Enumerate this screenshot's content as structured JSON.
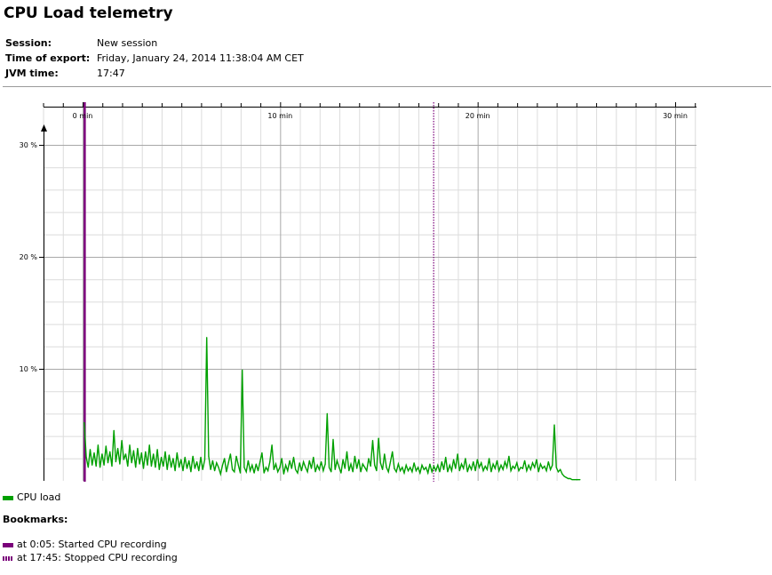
{
  "header": {
    "title": "CPU Load telemetry"
  },
  "meta": {
    "session_label": "Session:",
    "session_value": "New session",
    "export_label": "Time of export:",
    "export_value": "Friday, January 24, 2014 11:38:04 AM CET",
    "jvm_label": "JVM time:",
    "jvm_value": "17:47"
  },
  "legend": {
    "cpu_label": "CPU load"
  },
  "bookmarks": {
    "title": "Bookmarks:",
    "items": [
      {
        "text": "at 0:05: Started CPU recording",
        "time_min": 0.083,
        "style": "solid"
      },
      {
        "text": "at 17:45: Stopped CPU recording",
        "time_min": 17.75,
        "style": "dotted"
      }
    ]
  },
  "colors": {
    "cpu_line": "#00a000",
    "bookmark": "#7a007a",
    "grid_major": "#a8a8a8",
    "grid_minor": "#dcdcdc"
  },
  "chart_data": {
    "type": "line",
    "xunit": "min",
    "yunit": "%",
    "xlim": [
      -2,
      31
    ],
    "ylim": [
      0,
      30
    ],
    "x_major_ticks": [
      0,
      10,
      20,
      30
    ],
    "x_minor_step": 1,
    "y_major_ticks": [
      10,
      20,
      30
    ],
    "y_minor_step": 2,
    "x_tick_labels": [
      "0 min",
      "10 min",
      "20 min",
      "30 min"
    ],
    "y_tick_labels": [
      "10 %",
      "20 %",
      "30 %"
    ],
    "series": [
      {
        "name": "CPU load",
        "sample_interval_s": 6,
        "values": [
          5.2,
          2.1,
          1.2,
          2.8,
          1.4,
          2.5,
          1.3,
          3.2,
          1.2,
          2.4,
          1.4,
          3.1,
          1.6,
          2.6,
          1.3,
          4.5,
          1.7,
          2.9,
          1.5,
          3.6,
          1.9,
          2.4,
          1.3,
          3.2,
          1.6,
          2.7,
          1.2,
          2.9,
          1.5,
          2.5,
          1.1,
          2.6,
          1.4,
          3.2,
          1.3,
          2.4,
          1.2,
          2.8,
          1.0,
          2.1,
          1.3,
          2.6,
          1.0,
          2.3,
          1.2,
          2.0,
          0.9,
          2.5,
          1.2,
          1.9,
          0.9,
          2.1,
          1.1,
          1.8,
          0.8,
          2.2,
          1.1,
          1.7,
          0.9,
          2.1,
          1.0,
          1.9,
          12.8,
          2.2,
          1.0,
          1.8,
          0.9,
          1.6,
          1.2,
          0.6,
          1.4,
          2.0,
          0.8,
          1.6,
          2.4,
          1.0,
          0.8,
          2.2,
          1.4,
          0.7,
          9.9,
          1.2,
          0.8,
          1.8,
          0.9,
          1.4,
          0.7,
          1.5,
          0.9,
          1.7,
          2.5,
          0.7,
          1.2,
          0.9,
          1.7,
          3.2,
          1.0,
          1.5,
          0.8,
          1.2,
          2.0,
          0.6,
          1.4,
          0.9,
          1.8,
          1.1,
          2.1,
          1.0,
          0.7,
          1.6,
          0.9,
          1.7,
          1.2,
          0.8,
          1.8,
          1.1,
          2.1,
          0.8,
          1.4,
          1.0,
          1.7,
          0.9,
          1.5,
          6.0,
          1.2,
          0.8,
          3.7,
          1.0,
          1.8,
          1.2,
          0.7,
          1.9,
          1.1,
          2.6,
          0.9,
          1.5,
          0.8,
          2.2,
          1.1,
          1.9,
          0.8,
          1.5,
          1.2,
          0.9,
          2.0,
          1.3,
          3.6,
          1.4,
          0.9,
          3.8,
          1.6,
          1.0,
          2.4,
          1.2,
          0.8,
          1.7,
          2.6,
          1.1,
          0.8,
          1.5,
          0.9,
          1.2,
          0.7,
          1.4,
          0.9,
          1.2,
          0.8,
          1.6,
          0.9,
          1.2,
          0.7,
          1.4,
          1.0,
          1.2,
          0.7,
          1.5,
          0.8,
          1.3,
          0.9,
          1.4,
          0.8,
          1.7,
          1.0,
          2.1,
          0.8,
          1.4,
          0.9,
          1.9,
          1.1,
          2.4,
          0.9,
          1.5,
          1.1,
          2.0,
          0.8,
          1.4,
          1.0,
          1.7,
          0.9,
          1.9,
          1.2,
          1.6,
          0.9,
          1.3,
          1.0,
          2.0,
          0.8,
          1.5,
          1.1,
          1.8,
          0.9,
          1.4,
          1.0,
          1.7,
          1.2,
          2.2,
          0.9,
          1.3,
          1.1,
          1.6,
          0.9,
          1.2,
          1.1,
          1.8,
          0.9,
          1.4,
          1.0,
          1.6,
          1.2,
          1.9,
          0.8,
          1.5,
          1.1,
          1.3,
          0.9,
          1.7,
          1.0,
          1.4,
          5.0,
          1.2,
          0.8,
          1.0,
          0.6,
          0.4,
          0.3,
          0.2,
          0.2,
          0.1,
          0.1,
          0.1,
          0.1,
          0.1
        ]
      }
    ]
  }
}
